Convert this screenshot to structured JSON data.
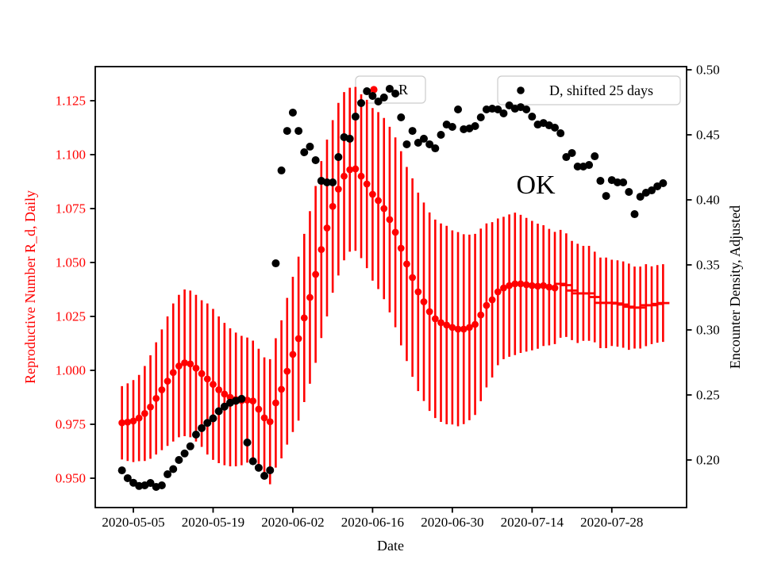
{
  "figure": {
    "annotation_text": "OK",
    "xlabel": "Date",
    "ylabel_left": "Reproductive Number R_d, Daily",
    "ylabel_right": "Encounter Density, Adjusted",
    "legend_r_label": "R",
    "legend_d_label": "D, shifted 25 days",
    "colors": {
      "r_series": "#ff0000",
      "d_series": "#000000",
      "left_axis_text": "#ff0000",
      "right_axis_text": "#000000",
      "legend_border": "#cccccc",
      "frame": "#000000"
    }
  },
  "chart_data": {
    "type": "scatter",
    "title": "",
    "xlabel": "Date",
    "ylabel_left": "Reproductive Number R_d, Daily",
    "ylabel_right": "Encounter Density, Adjusted",
    "grid": false,
    "legend_position": "top",
    "xlim": [
      "2020-04-28",
      "2020-08-10"
    ],
    "ylim_left": [
      0.936,
      1.141
    ],
    "ylim_right": [
      0.163,
      0.502
    ],
    "x_ticks": [
      "2020-05-05",
      "2020-05-19",
      "2020-06-02",
      "2020-06-16",
      "2020-06-30",
      "2020-07-14",
      "2020-07-28"
    ],
    "y_ticks_left": [
      "0.950",
      "0.975",
      "1.000",
      "1.025",
      "1.050",
      "1.075",
      "1.100",
      "1.125"
    ],
    "y_ticks_right": [
      "0.20",
      "0.25",
      "0.30",
      "0.35",
      "0.40",
      "0.45",
      "0.50"
    ],
    "annotations": [
      {
        "text": "OK",
        "x": "2020-06-25",
        "y_left": 1.083
      }
    ],
    "dates": [
      "2020-05-03",
      "2020-05-04",
      "2020-05-05",
      "2020-05-06",
      "2020-05-07",
      "2020-05-08",
      "2020-05-09",
      "2020-05-10",
      "2020-05-11",
      "2020-05-12",
      "2020-05-13",
      "2020-05-14",
      "2020-05-15",
      "2020-05-16",
      "2020-05-17",
      "2020-05-18",
      "2020-05-19",
      "2020-05-20",
      "2020-05-21",
      "2020-05-22",
      "2020-05-23",
      "2020-05-24",
      "2020-05-25",
      "2020-05-26",
      "2020-05-27",
      "2020-05-28",
      "2020-05-29",
      "2020-05-30",
      "2020-05-31",
      "2020-06-01",
      "2020-06-02",
      "2020-06-03",
      "2020-06-04",
      "2020-06-05",
      "2020-06-06",
      "2020-06-07",
      "2020-06-08",
      "2020-06-09",
      "2020-06-10",
      "2020-06-11",
      "2020-06-12",
      "2020-06-13",
      "2020-06-14",
      "2020-06-15",
      "2020-06-16",
      "2020-06-17",
      "2020-06-18",
      "2020-06-19",
      "2020-06-20",
      "2020-06-21",
      "2020-06-22",
      "2020-06-23",
      "2020-06-24",
      "2020-06-25",
      "2020-06-26",
      "2020-06-27",
      "2020-06-28",
      "2020-06-29",
      "2020-06-30",
      "2020-07-01",
      "2020-07-02",
      "2020-07-03",
      "2020-07-04",
      "2020-07-05",
      "2020-07-06",
      "2020-07-07",
      "2020-07-08",
      "2020-07-09",
      "2020-07-10",
      "2020-07-11",
      "2020-07-12",
      "2020-07-13",
      "2020-07-14",
      "2020-07-15",
      "2020-07-16",
      "2020-07-17",
      "2020-07-18",
      "2020-07-19",
      "2020-07-20",
      "2020-07-21",
      "2020-07-22",
      "2020-07-23",
      "2020-07-24",
      "2020-07-25",
      "2020-07-26",
      "2020-07-27",
      "2020-07-28",
      "2020-07-29",
      "2020-07-30",
      "2020-07-31",
      "2020-08-01",
      "2020-08-02",
      "2020-08-03",
      "2020-08-04",
      "2020-08-05",
      "2020-08-06"
    ],
    "series": [
      {
        "name": "R",
        "axis": "left",
        "color": "#ff0000",
        "marker": "circle",
        "dash_marker_from": "2020-07-19",
        "values": [
          0.9757,
          0.976,
          0.9765,
          0.9779,
          0.98,
          0.983,
          0.987,
          0.991,
          0.995,
          0.999,
          1.002,
          1.0035,
          1.003,
          1.001,
          0.9985,
          0.996,
          0.9935,
          0.991,
          0.989,
          0.9875,
          0.9865,
          0.986,
          0.9862,
          0.9858,
          0.982,
          0.978,
          0.9762,
          0.9849,
          0.9912,
          0.9996,
          1.0074,
          1.0147,
          1.0243,
          1.0338,
          1.0445,
          1.056,
          1.066,
          1.076,
          1.084,
          1.09,
          1.093,
          1.0934,
          1.09,
          1.0864,
          1.0816,
          1.0787,
          1.075,
          1.0699,
          1.064,
          1.0566,
          1.0493,
          1.043,
          1.0364,
          1.0318,
          1.0272,
          1.0239,
          1.0221,
          1.021,
          1.0199,
          1.0191,
          1.0191,
          1.0199,
          1.0213,
          1.0257,
          1.0301,
          1.0327,
          1.0364,
          1.0382,
          1.0393,
          1.0401,
          1.0401,
          1.0397,
          1.0393,
          1.039,
          1.0393,
          1.0386,
          1.0382,
          1.0401,
          1.0395,
          1.037,
          1.0357,
          1.0357,
          1.0357,
          1.034,
          1.0313,
          1.0313,
          1.0313,
          1.031,
          1.0305,
          1.0295,
          1.0291,
          1.0291,
          1.0302,
          1.0302,
          1.0308,
          1.0312
        ],
        "errors": [
          0.017,
          0.018,
          0.019,
          0.02,
          0.022,
          0.024,
          0.026,
          0.028,
          0.03,
          0.032,
          0.033,
          0.034,
          0.034,
          0.034,
          0.034,
          0.035,
          0.035,
          0.034,
          0.033,
          0.032,
          0.031,
          0.03,
          0.029,
          0.028,
          0.028,
          0.028,
          0.029,
          0.03,
          0.032,
          0.034,
          0.036,
          0.038,
          0.039,
          0.04,
          0.041,
          0.041,
          0.041,
          0.04,
          0.04,
          0.039,
          0.038,
          0.038,
          0.038,
          0.039,
          0.04,
          0.041,
          0.042,
          0.043,
          0.044,
          0.045,
          0.045,
          0.046,
          0.046,
          0.046,
          0.046,
          0.046,
          0.046,
          0.046,
          0.045,
          0.045,
          0.044,
          0.043,
          0.042,
          0.04,
          0.038,
          0.036,
          0.034,
          0.033,
          0.033,
          0.033,
          0.032,
          0.031,
          0.03,
          0.029,
          0.028,
          0.027,
          0.026,
          0.025,
          0.024,
          0.023,
          0.023,
          0.022,
          0.022,
          0.021,
          0.021,
          0.021,
          0.02,
          0.02,
          0.02,
          0.02,
          0.019,
          0.019,
          0.019,
          0.018,
          0.018,
          0.018
        ]
      },
      {
        "name": "D, shifted 25 days",
        "axis": "right",
        "color": "#000000",
        "marker": "circle",
        "values": [
          0.192,
          0.186,
          0.1825,
          0.18,
          0.1805,
          0.1823,
          0.1793,
          0.1805,
          0.189,
          0.193,
          0.2,
          0.205,
          0.2105,
          0.2195,
          0.2245,
          0.2285,
          0.232,
          0.2375,
          0.241,
          0.244,
          0.2455,
          0.247,
          0.2134,
          0.199,
          0.194,
          0.1878,
          0.1921,
          0.3512,
          0.4226,
          0.453,
          0.4671,
          0.453,
          0.4366,
          0.4409,
          0.4305,
          0.4146,
          0.4134,
          0.4134,
          0.4329,
          0.4482,
          0.447,
          0.464,
          0.4744,
          0.4835,
          0.4799,
          0.4756,
          0.4787,
          0.4854,
          0.4817,
          0.4634,
          0.4427,
          0.453,
          0.4439,
          0.447,
          0.4427,
          0.4396,
          0.45,
          0.4579,
          0.4561,
          0.4695,
          0.4543,
          0.4549,
          0.4567,
          0.4634,
          0.4695,
          0.4701,
          0.4695,
          0.4665,
          0.4726,
          0.4701,
          0.4713,
          0.4695,
          0.464,
          0.4579,
          0.4591,
          0.4573,
          0.4555,
          0.4512,
          0.4329,
          0.436,
          0.4256,
          0.4256,
          0.4268,
          0.4335,
          0.4146,
          0.403,
          0.4152,
          0.4134,
          0.4134,
          0.4061,
          0.389,
          0.4024,
          0.4055,
          0.4073,
          0.4104,
          0.4128
        ]
      }
    ]
  }
}
